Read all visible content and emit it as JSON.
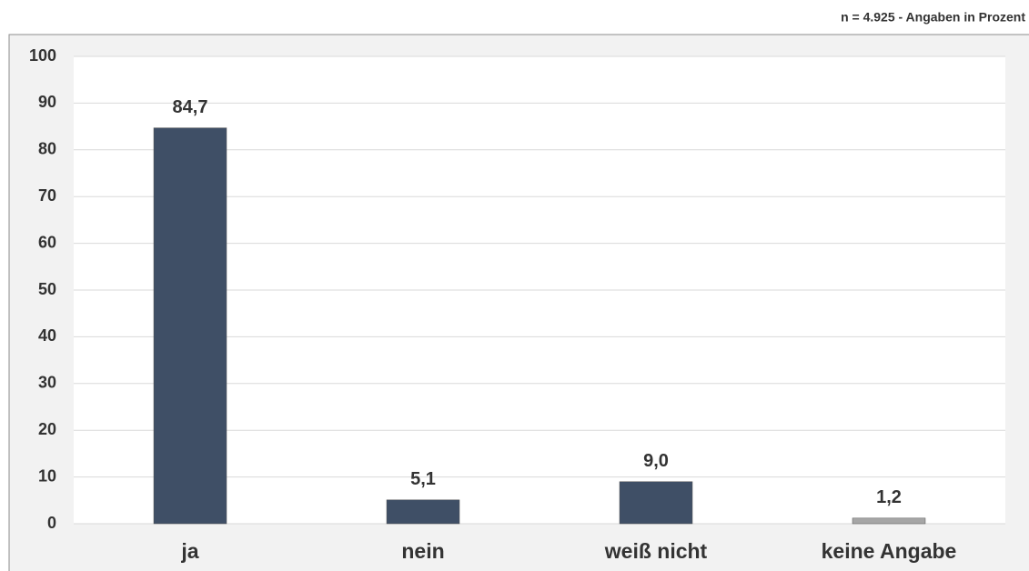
{
  "chart_data": {
    "type": "bar",
    "subtitle": "n = 4.925 - Angaben in Prozent",
    "categories": [
      "ja",
      "nein",
      "weiß nicht",
      "keine Angabe"
    ],
    "values": [
      84.7,
      5.1,
      9.0,
      1.2
    ],
    "value_labels": [
      "84,7",
      "5,1",
      "9,0",
      "1,2"
    ],
    "colors": [
      "#3f4f66",
      "#3f4f66",
      "#3f4f66",
      "#a6a6a6"
    ],
    "ylim": [
      0,
      100
    ],
    "yticks": [
      0,
      10,
      20,
      30,
      40,
      50,
      60,
      70,
      80,
      90,
      100
    ],
    "grid": true
  }
}
